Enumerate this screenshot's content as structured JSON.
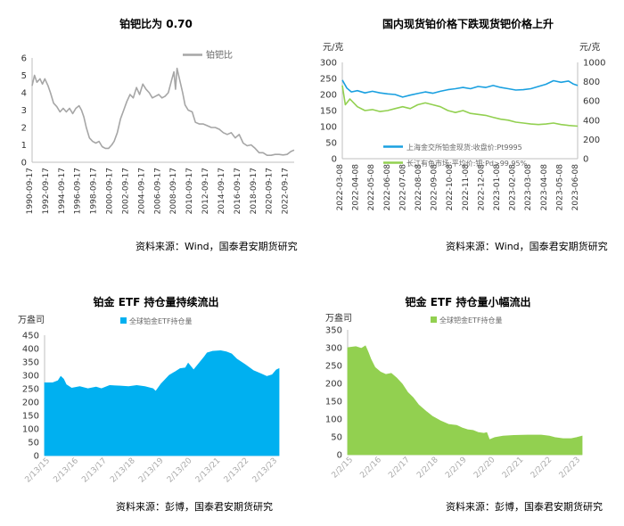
{
  "chart_data": [
    {
      "type": "line",
      "title": "铂钯比为 0.70",
      "source": "资料来源：Wind，国泰君安期货研究",
      "ylim": [
        0,
        6
      ],
      "yticks": [
        "0",
        "1",
        "2",
        "3",
        "4",
        "5",
        "6"
      ],
      "xticks": [
        "1990-09-17",
        "1992-09-17",
        "1994-09-17",
        "1996-09-17",
        "1998-09-17",
        "2000-09-17",
        "2002-09-17",
        "2004-09-17",
        "2006-09-17",
        "2008-09-17",
        "2010-09-17",
        "2012-09-17",
        "2014-09-17",
        "2016-09-17",
        "2018-09-17",
        "2020-09-17",
        "2022-09-17"
      ],
      "xrange": [
        1990.7,
        2023.6
      ],
      "legend_position": "top-center",
      "series": [
        {
          "name": "铂钯比",
          "color": "#a6a6a6",
          "points": [
            [
              1990.7,
              4.4
            ],
            [
              1991.0,
              5.0
            ],
            [
              1991.3,
              4.6
            ],
            [
              1991.7,
              4.8
            ],
            [
              1992.0,
              4.5
            ],
            [
              1992.3,
              4.8
            ],
            [
              1992.7,
              4.4
            ],
            [
              1993.0,
              4.0
            ],
            [
              1993.4,
              3.4
            ],
            [
              1993.8,
              3.2
            ],
            [
              1994.2,
              2.9
            ],
            [
              1994.6,
              3.1
            ],
            [
              1995.0,
              2.9
            ],
            [
              1995.4,
              3.1
            ],
            [
              1995.8,
              2.8
            ],
            [
              1996.2,
              3.1
            ],
            [
              1996.6,
              3.25
            ],
            [
              1996.9,
              3.0
            ],
            [
              1997.2,
              2.6
            ],
            [
              1997.5,
              2.0
            ],
            [
              1997.9,
              1.4
            ],
            [
              1998.3,
              1.2
            ],
            [
              1998.7,
              1.1
            ],
            [
              1999.1,
              1.2
            ],
            [
              1999.5,
              0.9
            ],
            [
              1999.9,
              0.8
            ],
            [
              2000.3,
              0.8
            ],
            [
              2000.7,
              1.0
            ],
            [
              2001.0,
              1.2
            ],
            [
              2001.4,
              1.7
            ],
            [
              2001.8,
              2.5
            ],
            [
              2002.2,
              3.0
            ],
            [
              2002.6,
              3.5
            ],
            [
              2003.0,
              3.9
            ],
            [
              2003.4,
              3.7
            ],
            [
              2003.8,
              4.3
            ],
            [
              2004.2,
              3.9
            ],
            [
              2004.6,
              4.5
            ],
            [
              2005.0,
              4.2
            ],
            [
              2005.4,
              4.0
            ],
            [
              2005.8,
              3.7
            ],
            [
              2006.2,
              3.8
            ],
            [
              2006.6,
              3.9
            ],
            [
              2007.0,
              3.7
            ],
            [
              2007.4,
              3.8
            ],
            [
              2007.8,
              4.0
            ],
            [
              2008.2,
              4.7
            ],
            [
              2008.5,
              5.2
            ],
            [
              2008.7,
              4.2
            ],
            [
              2008.9,
              5.4
            ],
            [
              2009.1,
              5.0
            ],
            [
              2009.3,
              4.6
            ],
            [
              2009.6,
              4.0
            ],
            [
              2009.9,
              3.3
            ],
            [
              2010.3,
              3.0
            ],
            [
              2010.8,
              2.9
            ],
            [
              2011.2,
              2.3
            ],
            [
              2011.7,
              2.2
            ],
            [
              2012.2,
              2.2
            ],
            [
              2012.7,
              2.1
            ],
            [
              2013.2,
              2.0
            ],
            [
              2013.7,
              2.0
            ],
            [
              2014.2,
              1.9
            ],
            [
              2014.7,
              1.7
            ],
            [
              2015.2,
              1.6
            ],
            [
              2015.7,
              1.7
            ],
            [
              2016.2,
              1.4
            ],
            [
              2016.7,
              1.6
            ],
            [
              2017.2,
              1.1
            ],
            [
              2017.7,
              0.95
            ],
            [
              2018.2,
              1.0
            ],
            [
              2018.7,
              0.8
            ],
            [
              2019.2,
              0.55
            ],
            [
              2019.7,
              0.55
            ],
            [
              2020.2,
              0.4
            ],
            [
              2020.7,
              0.4
            ],
            [
              2021.2,
              0.45
            ],
            [
              2021.7,
              0.45
            ],
            [
              2022.2,
              0.42
            ],
            [
              2022.7,
              0.45
            ],
            [
              2023.2,
              0.62
            ],
            [
              2023.6,
              0.7
            ]
          ]
        }
      ]
    },
    {
      "type": "line",
      "title": "国内现货铂价格下跌现货钯价格上升",
      "source": "资料来源：Wind，国泰君安期货研究",
      "ylabel": "元/克",
      "y2label": "元/克",
      "ylim": [
        0,
        300
      ],
      "y2lim": [
        0,
        1000
      ],
      "yticks": [
        "0",
        "50",
        "100",
        "150",
        "200",
        "250",
        "300"
      ],
      "y2ticks": [
        "0",
        "200",
        "400",
        "600",
        "800",
        "1000"
      ],
      "xticks": [
        "2022-03-08",
        "2022-04-08",
        "2022-05-08",
        "2022-06-08",
        "2022-07-08",
        "2022-08-08",
        "2022-09-08",
        "2022-10-08",
        "2022-11-08",
        "2022-12-08",
        "2023-01-08",
        "2023-02-08",
        "2023-03-08",
        "2023-04-08",
        "2023-05-08",
        "2023-06-08"
      ],
      "xrange": [
        0,
        15.6
      ],
      "legend_position": "bottom-center",
      "series": [
        {
          "name": "上海金交所铂金现货:收盘价:Pt9995",
          "axis": "left",
          "color": "#1aa0e0",
          "points": [
            [
              0,
              245
            ],
            [
              0.3,
              220
            ],
            [
              0.6,
              208
            ],
            [
              1.0,
              212
            ],
            [
              1.5,
              205
            ],
            [
              2.0,
              210
            ],
            [
              2.5,
              205
            ],
            [
              3.0,
              202
            ],
            [
              3.5,
              200
            ],
            [
              4.0,
              192
            ],
            [
              4.5,
              198
            ],
            [
              5.0,
              203
            ],
            [
              5.5,
              208
            ],
            [
              6.0,
              204
            ],
            [
              6.5,
              210
            ],
            [
              7.0,
              215
            ],
            [
              7.5,
              218
            ],
            [
              8.0,
              222
            ],
            [
              8.5,
              218
            ],
            [
              9.0,
              225
            ],
            [
              9.5,
              222
            ],
            [
              10.0,
              228
            ],
            [
              10.5,
              222
            ],
            [
              11.0,
              218
            ],
            [
              11.5,
              214
            ],
            [
              12.0,
              215
            ],
            [
              12.5,
              218
            ],
            [
              13.0,
              225
            ],
            [
              13.5,
              232
            ],
            [
              14.0,
              243
            ],
            [
              14.5,
              238
            ],
            [
              15.0,
              242
            ],
            [
              15.3,
              233
            ],
            [
              15.6,
              228
            ]
          ]
        },
        {
          "name": "长江有色市场:平均价:钯:Pd>99.95%",
          "axis": "right",
          "color": "#92d050",
          "points": [
            [
              0,
              760
            ],
            [
              0.2,
              560
            ],
            [
              0.5,
              620
            ],
            [
              1.0,
              540
            ],
            [
              1.5,
              500
            ],
            [
              2.0,
              510
            ],
            [
              2.5,
              490
            ],
            [
              3.0,
              500
            ],
            [
              3.5,
              520
            ],
            [
              4.0,
              540
            ],
            [
              4.5,
              520
            ],
            [
              5.0,
              560
            ],
            [
              5.5,
              580
            ],
            [
              6.0,
              560
            ],
            [
              6.5,
              540
            ],
            [
              7.0,
              500
            ],
            [
              7.5,
              480
            ],
            [
              8.0,
              500
            ],
            [
              8.5,
              470
            ],
            [
              9.0,
              460
            ],
            [
              9.5,
              450
            ],
            [
              10.0,
              430
            ],
            [
              10.5,
              410
            ],
            [
              11.0,
              400
            ],
            [
              11.5,
              380
            ],
            [
              12.0,
              370
            ],
            [
              12.5,
              360
            ],
            [
              13.0,
              355
            ],
            [
              13.5,
              360
            ],
            [
              14.0,
              370
            ],
            [
              14.5,
              355
            ],
            [
              15.0,
              345
            ],
            [
              15.6,
              338
            ]
          ]
        }
      ]
    },
    {
      "type": "area",
      "title": "铂金 ETF 持仓量持续流出",
      "source": "资料来源：彭博，国泰君安期货研究",
      "ylabel": "万盎司",
      "ylim": [
        0,
        450
      ],
      "yticks": [
        "0",
        "50",
        "100",
        "150",
        "200",
        "250",
        "300",
        "350",
        "400",
        "450"
      ],
      "xticks": [
        "2/13/15",
        "2/13/16",
        "2/13/17",
        "2/13/18",
        "2/13/19",
        "2/13/20",
        "2/13/21",
        "2/13/22",
        "2/13/23"
      ],
      "xrange": [
        -0.1,
        8.55
      ],
      "legend_position": "top-left",
      "series": [
        {
          "name": "全球铂金ETF持仓量",
          "color": "#00b0f0",
          "points": [
            [
              -0.1,
              272
            ],
            [
              0.2,
              272
            ],
            [
              0.4,
              280
            ],
            [
              0.5,
              296
            ],
            [
              0.6,
              286
            ],
            [
              0.7,
              265
            ],
            [
              0.9,
              252
            ],
            [
              1.2,
              258
            ],
            [
              1.5,
              250
            ],
            [
              1.8,
              256
            ],
            [
              2.0,
              250
            ],
            [
              2.3,
              262
            ],
            [
              2.7,
              260
            ],
            [
              3.0,
              258
            ],
            [
              3.3,
              262
            ],
            [
              3.6,
              258
            ],
            [
              3.9,
              250
            ],
            [
              4.0,
              240
            ],
            [
              4.2,
              268
            ],
            [
              4.5,
              300
            ],
            [
              4.7,
              312
            ],
            [
              4.9,
              325
            ],
            [
              5.1,
              328
            ],
            [
              5.2,
              345
            ],
            [
              5.4,
              320
            ],
            [
              5.6,
              345
            ],
            [
              5.8,
              370
            ],
            [
              5.9,
              384
            ],
            [
              6.1,
              390
            ],
            [
              6.4,
              392
            ],
            [
              6.6,
              388
            ],
            [
              6.8,
              380
            ],
            [
              7.0,
              360
            ],
            [
              7.3,
              340
            ],
            [
              7.6,
              318
            ],
            [
              7.9,
              305
            ],
            [
              8.1,
              296
            ],
            [
              8.3,
              302
            ],
            [
              8.45,
              320
            ],
            [
              8.55,
              325
            ]
          ]
        }
      ]
    },
    {
      "type": "area",
      "title": "钯金 ETF 持仓量小幅流出",
      "source": "资料来源：彭博，国泰君安期货研究",
      "ylabel": "万盎司",
      "ylim": [
        0,
        350
      ],
      "yticks": [
        "0",
        "50",
        "100",
        "150",
        "200",
        "250",
        "300",
        "350"
      ],
      "xticks": [
        "2/2/15",
        "2/2/16",
        "2/2/17",
        "2/2/18",
        "2/2/19",
        "2/2/20",
        "2/2/21",
        "2/2/22",
        "2/2/23"
      ],
      "xrange": [
        -0.1,
        8.5
      ],
      "legend_position": "top-left",
      "series": [
        {
          "name": "全球钯金ETF持仓量",
          "color": "#92d050",
          "points": [
            [
              -0.1,
              300
            ],
            [
              0.2,
              303
            ],
            [
              0.4,
              298
            ],
            [
              0.55,
              305
            ],
            [
              0.65,
              288
            ],
            [
              0.75,
              268
            ],
            [
              0.9,
              245
            ],
            [
              1.1,
              232
            ],
            [
              1.3,
              225
            ],
            [
              1.5,
              228
            ],
            [
              1.7,
              215
            ],
            [
              1.9,
              198
            ],
            [
              2.1,
              175
            ],
            [
              2.3,
              160
            ],
            [
              2.5,
              140
            ],
            [
              2.8,
              120
            ],
            [
              3.0,
              108
            ],
            [
              3.3,
              95
            ],
            [
              3.6,
              85
            ],
            [
              3.9,
              82
            ],
            [
              4.1,
              75
            ],
            [
              4.3,
              70
            ],
            [
              4.5,
              68
            ],
            [
              4.7,
              62
            ],
            [
              4.9,
              60
            ],
            [
              5.0,
              62
            ],
            [
              5.1,
              42
            ],
            [
              5.3,
              48
            ],
            [
              5.6,
              52
            ],
            [
              6.0,
              54
            ],
            [
              6.5,
              55
            ],
            [
              7.0,
              55
            ],
            [
              7.3,
              52
            ],
            [
              7.5,
              48
            ],
            [
              7.8,
              45
            ],
            [
              8.1,
              45
            ],
            [
              8.3,
              48
            ],
            [
              8.5,
              52
            ]
          ]
        }
      ]
    }
  ]
}
